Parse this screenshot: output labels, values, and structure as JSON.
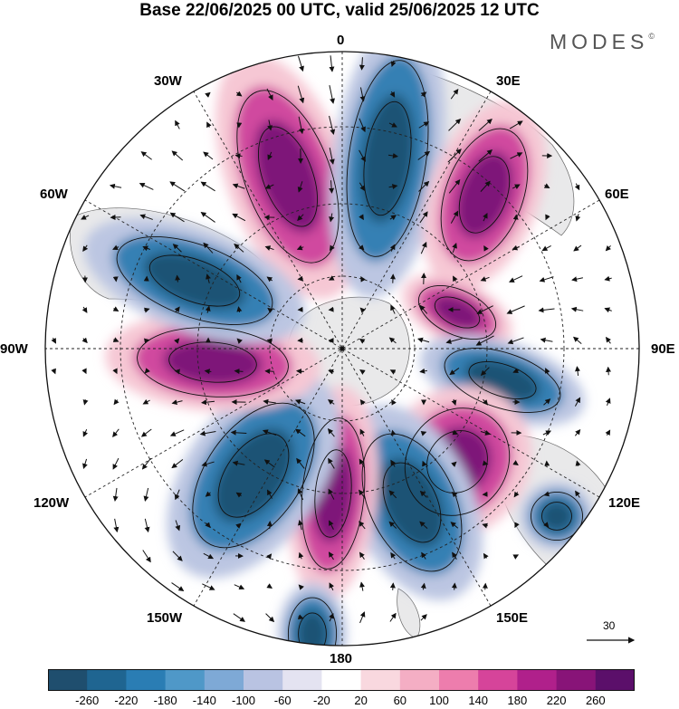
{
  "title": "Base 22/06/2025 00 UTC, valid 25/06/2025 12 UTC",
  "logo": {
    "text": "MODES",
    "mark": "©"
  },
  "longitude_labels": {
    "n0": "0",
    "e30": "30E",
    "e60": "60E",
    "e90": "90E",
    "e120": "120E",
    "e150": "150E",
    "s180": "180",
    "w150": "150W",
    "w120": "120W",
    "w90": "90W",
    "w60": "60W",
    "w30": "30W"
  },
  "reference_vector": {
    "label": "30"
  },
  "colorbar": {
    "ticks": [
      "-260",
      "-220",
      "-180",
      "-140",
      "-100",
      "-60",
      "-20",
      "20",
      "60",
      "100",
      "140",
      "180",
      "220",
      "260"
    ],
    "colors": [
      "#1f4e6e",
      "#1f6591",
      "#2a7db4",
      "#4f98c8",
      "#7ea9d6",
      "#b9c3e2",
      "#e4e3f1",
      "#ffffff",
      "#f9d8df",
      "#f4aec4",
      "#ed7dad",
      "#d6449a",
      "#b0208b",
      "#881478",
      "#5b0f6a"
    ]
  },
  "map_colors": {
    "ocean": "#ffffff",
    "land": "#e9e9ea",
    "coast": "#555555",
    "neg_strong": "#1f5274",
    "neg_mid": "#3680b4",
    "neg_light": "#bcc6e2",
    "pos_strong": "#7e1679",
    "pos_mid": "#d04a9f",
    "pos_light": "#f6c7d4"
  }
}
